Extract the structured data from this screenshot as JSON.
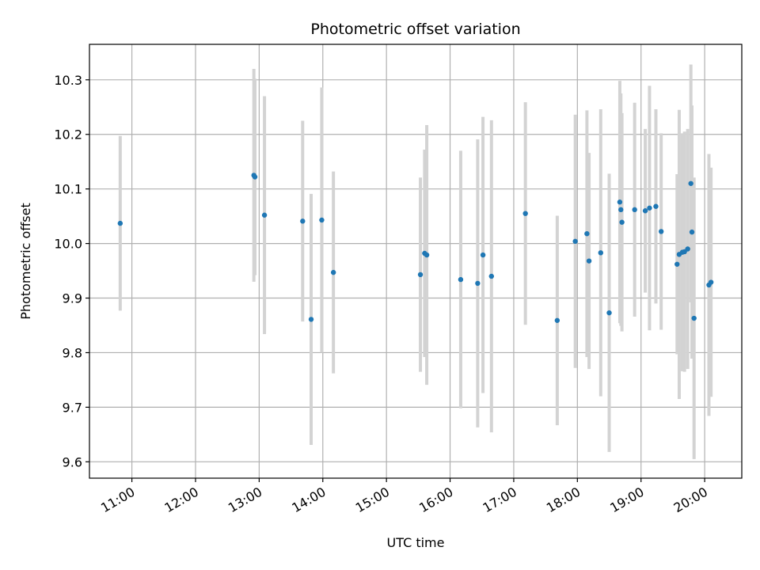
{
  "chart_data": {
    "type": "scatter",
    "title": "Photometric offset variation",
    "xlabel": "UTC time",
    "ylabel": "Photometric offset",
    "grid": true,
    "legend": "none",
    "colors": {
      "point": "#1f77b4",
      "errorbar": "#d3d3d3",
      "grid": "#b0b0b0"
    },
    "xlim": [
      "10:20",
      "20:35"
    ],
    "ylim": [
      9.57,
      10.365
    ],
    "x_ticks": [
      "11:00",
      "12:00",
      "13:00",
      "14:00",
      "15:00",
      "16:00",
      "17:00",
      "18:00",
      "19:00",
      "20:00"
    ],
    "y_ticks": [
      "9.6",
      "9.7",
      "9.8",
      "9.9",
      "10.0",
      "10.1",
      "10.2",
      "10.3"
    ],
    "points": [
      {
        "x": "10:49",
        "y": 10.037,
        "err": 0.16
      },
      {
        "x": "12:55",
        "y": 10.125,
        "err": 0.195
      },
      {
        "x": "12:56",
        "y": 10.122,
        "err": 0.18
      },
      {
        "x": "13:05",
        "y": 10.052,
        "err": 0.218
      },
      {
        "x": "13:41",
        "y": 10.041,
        "err": 0.184
      },
      {
        "x": "13:49",
        "y": 9.861,
        "err": 0.23
      },
      {
        "x": "13:59",
        "y": 10.043,
        "err": 0.243
      },
      {
        "x": "14:10",
        "y": 9.947,
        "err": 0.185
      },
      {
        "x": "15:32",
        "y": 9.943,
        "err": 0.178
      },
      {
        "x": "15:36",
        "y": 9.982,
        "err": 0.19
      },
      {
        "x": "15:38",
        "y": 9.979,
        "err": 0.238
      },
      {
        "x": "16:10",
        "y": 9.934,
        "err": 0.236
      },
      {
        "x": "16:26",
        "y": 9.927,
        "err": 0.264
      },
      {
        "x": "16:31",
        "y": 9.979,
        "err": 0.253
      },
      {
        "x": "16:39",
        "y": 9.94,
        "err": 0.286
      },
      {
        "x": "17:11",
        "y": 10.055,
        "err": 0.204
      },
      {
        "x": "17:41",
        "y": 9.859,
        "err": 0.192
      },
      {
        "x": "17:58",
        "y": 10.004,
        "err": 0.232
      },
      {
        "x": "18:09",
        "y": 10.018,
        "err": 0.226
      },
      {
        "x": "18:11",
        "y": 9.968,
        "err": 0.198
      },
      {
        "x": "18:22",
        "y": 9.983,
        "err": 0.263
      },
      {
        "x": "18:30",
        "y": 9.873,
        "err": 0.255
      },
      {
        "x": "18:40",
        "y": 10.076,
        "err": 0.222
      },
      {
        "x": "18:41",
        "y": 10.062,
        "err": 0.213
      },
      {
        "x": "18:42",
        "y": 10.039,
        "err": 0.2
      },
      {
        "x": "18:54",
        "y": 10.062,
        "err": 0.196
      },
      {
        "x": "19:04",
        "y": 10.06,
        "err": 0.15
      },
      {
        "x": "19:08",
        "y": 10.065,
        "err": 0.224
      },
      {
        "x": "19:14",
        "y": 10.068,
        "err": 0.178
      },
      {
        "x": "19:19",
        "y": 10.022,
        "err": 0.18
      },
      {
        "x": "19:34",
        "y": 9.962,
        "err": 0.165
      },
      {
        "x": "19:36",
        "y": 9.98,
        "err": 0.265
      },
      {
        "x": "19:39",
        "y": 9.984,
        "err": 0.218
      },
      {
        "x": "19:41",
        "y": 9.985,
        "err": 0.22
      },
      {
        "x": "19:44",
        "y": 9.99,
        "err": 0.22
      },
      {
        "x": "19:47",
        "y": 10.11,
        "err": 0.218
      },
      {
        "x": "19:48",
        "y": 10.021,
        "err": 0.232
      },
      {
        "x": "19:50",
        "y": 9.863,
        "err": 0.258
      },
      {
        "x": "20:04",
        "y": 9.924,
        "err": 0.24
      },
      {
        "x": "20:06",
        "y": 9.929,
        "err": 0.21
      }
    ]
  }
}
